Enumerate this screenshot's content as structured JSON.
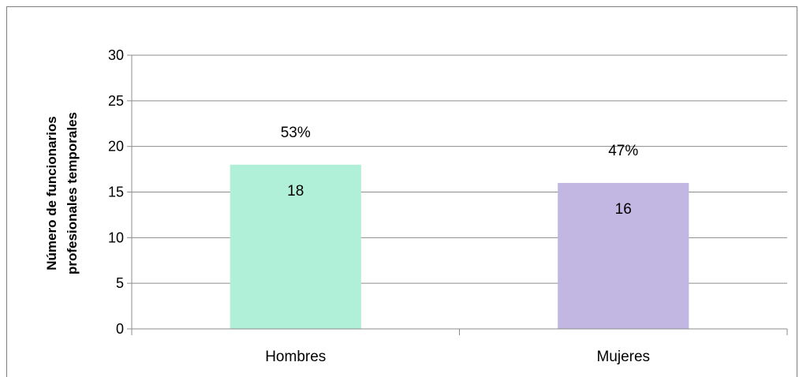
{
  "chart_data": {
    "type": "bar",
    "categories": [
      "Hombres",
      "Mujeres"
    ],
    "values": [
      18,
      16
    ],
    "percent_labels": [
      "53%",
      "47%"
    ],
    "value_labels": [
      "18",
      "16"
    ],
    "colors": [
      "#b0f0d8",
      "#c2b6e2"
    ],
    "ylabel_lines": [
      "Número de funcionarios",
      "profesionales temporales"
    ],
    "ylim": [
      0,
      30
    ],
    "yticks": [
      0,
      5,
      10,
      15,
      20,
      25,
      30
    ],
    "grid": true,
    "legend": "none"
  }
}
